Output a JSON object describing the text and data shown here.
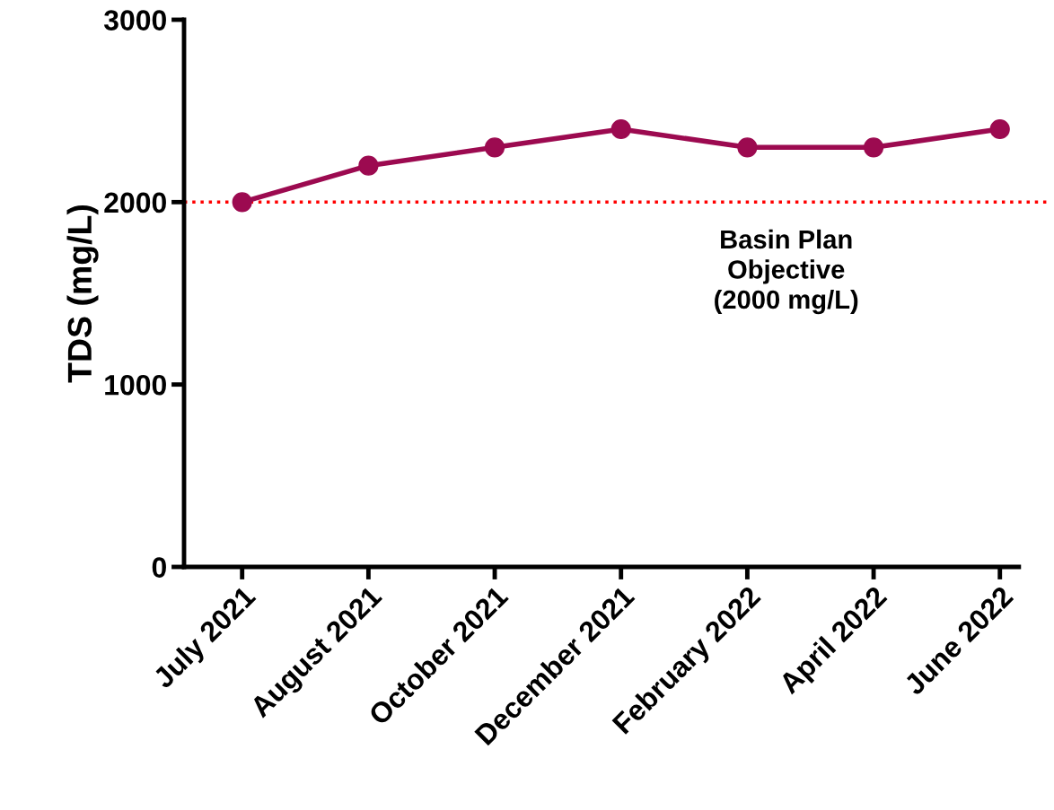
{
  "chart_data": {
    "type": "line",
    "ylabel": "TDS (mg/L)",
    "categories": [
      "July 2021",
      "August 2021",
      "October 2021",
      "December 2021",
      "February 2022",
      "April 2022",
      "June 2022"
    ],
    "series": [
      {
        "color": "#9c0a50",
        "values": [
          2000,
          2200,
          2300,
          2400,
          2300,
          2300,
          2400
        ]
      }
    ],
    "ylim": [
      0,
      3000
    ],
    "yticks": [
      0,
      1000,
      2000,
      3000
    ],
    "ref_lines": [
      {
        "axis": "y",
        "value": 2000,
        "label": "Basin Plan\nObjective\n(2000 mg/L)",
        "color": "#ff0000",
        "line_style": "dotted"
      }
    ],
    "marker": "circle",
    "line_style": "solid",
    "grid": false,
    "legend": false
  }
}
